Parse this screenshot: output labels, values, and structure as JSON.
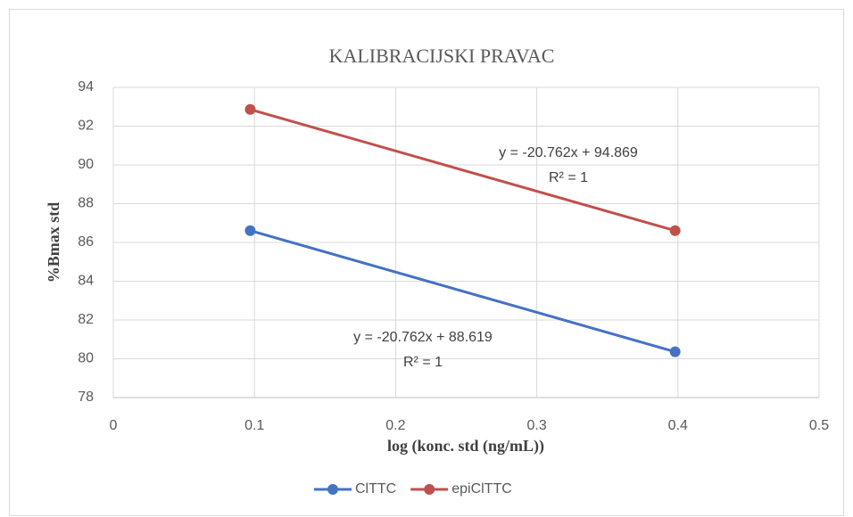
{
  "chart_data": {
    "type": "line",
    "title": "KALIBRACIJSKI PRAVAC",
    "x_label": "log (konc. std (ng/mL))",
    "y_label": "%Bmax std",
    "x": [
      0.097,
      0.398
    ],
    "series": [
      {
        "name": "ClTTC",
        "color": "#4472c4",
        "values": [
          86.61,
          80.36
        ],
        "annotation": [
          "y = -20.762x + 88.619",
          "R² = 1"
        ]
      },
      {
        "name": "epiClTTC",
        "color": "#c0504d",
        "values": [
          92.86,
          86.61
        ],
        "annotation": [
          "y = -20.762x + 94.869",
          "R² = 1"
        ]
      }
    ],
    "xlim": [
      0,
      0.5
    ],
    "xticks": [
      0,
      0.1,
      0.2,
      0.3,
      0.4,
      0.5
    ],
    "ylim": [
      78,
      94
    ],
    "yticks": [
      78,
      80,
      82,
      84,
      86,
      88,
      90,
      92,
      94
    ],
    "grid": true,
    "legend": "bottom"
  }
}
